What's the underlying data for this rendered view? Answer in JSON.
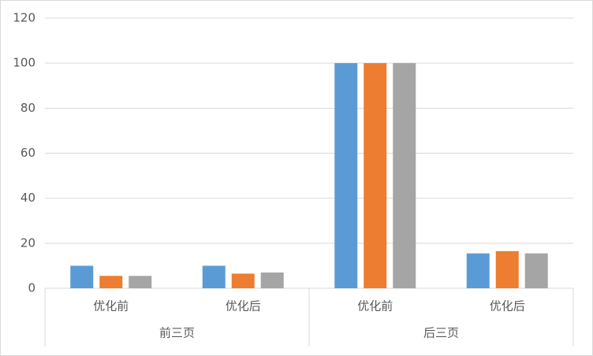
{
  "chart_data": {
    "type": "bar",
    "groups": [
      {
        "name": "前三页",
        "categories": [
          "优化前",
          "优化后"
        ]
      },
      {
        "name": "后三页",
        "categories": [
          "优化前",
          "优化后"
        ]
      }
    ],
    "series": [
      {
        "color": "#5b9bd5",
        "values": [
          10,
          10,
          100,
          15.5
        ]
      },
      {
        "color": "#ed7d31",
        "values": [
          5.5,
          6.5,
          100,
          16.5
        ]
      },
      {
        "color": "#a5a5a5",
        "values": [
          5.5,
          7,
          100,
          15.5
        ]
      }
    ],
    "ylim": [
      0,
      120
    ],
    "yticks": [
      0,
      20,
      40,
      60,
      80,
      100,
      120
    ],
    "grid": true
  }
}
